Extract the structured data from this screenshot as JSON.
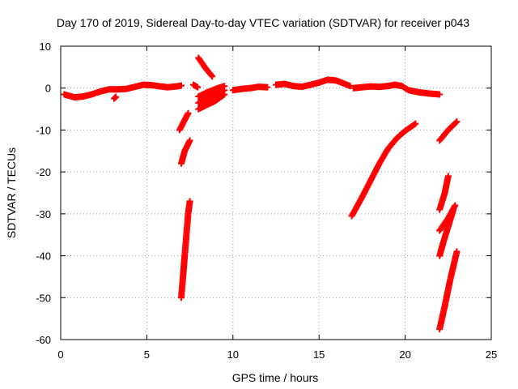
{
  "chart_data": {
    "type": "scatter",
    "title": "Day 170 of 2019, Sidereal Day-to-day VTEC variation (SDTVAR) for receiver p043",
    "xlabel": "GPS time / hours",
    "ylabel": "SDTVAR / TECUs",
    "xlim": [
      0,
      25
    ],
    "ylim": [
      -60,
      10
    ],
    "xticks": [
      "0",
      "5",
      "10",
      "15",
      "20",
      "25"
    ],
    "yticks": [
      "10",
      "0",
      "-10",
      "-20",
      "-30",
      "-40",
      "-50",
      "-60"
    ],
    "grid": true,
    "marker": "plus",
    "color": "#ff0000",
    "series": [
      {
        "segments": [
          [
            [
              0.2,
              -1.5
            ],
            [
              0.8,
              -2.2
            ],
            [
              1.3,
              -2.0
            ],
            [
              1.8,
              -1.5
            ],
            [
              2.3,
              -0.8
            ],
            [
              2.8,
              -0.3
            ],
            [
              3.3,
              -0.3
            ],
            [
              3.8,
              -0.2
            ],
            [
              4.3,
              0.3
            ],
            [
              4.8,
              0.8
            ],
            [
              5.3,
              0.7
            ],
            [
              5.8,
              0.4
            ],
            [
              6.2,
              0.2
            ],
            [
              6.7,
              0.4
            ],
            [
              7.0,
              0.6
            ]
          ],
          [
            [
              3.1,
              -2.5
            ],
            [
              3.2,
              -2.1
            ]
          ],
          [
            [
              7.7,
              0.8
            ],
            [
              7.95,
              0.2
            ]
          ],
          [
            [
              8.0,
              7.2
            ],
            [
              8.4,
              4.8
            ],
            [
              8.8,
              2.8
            ]
          ],
          [
            [
              8.0,
              -5.0
            ],
            [
              8.5,
              -4.0
            ],
            [
              9.0,
              -3.0
            ],
            [
              9.5,
              -1.5
            ]
          ],
          [
            [
              8.0,
              -3.5
            ],
            [
              8.5,
              -2.5
            ],
            [
              9.0,
              -1.5
            ],
            [
              9.5,
              -0.5
            ]
          ],
          [
            [
              8.0,
              -2.0
            ],
            [
              8.5,
              -1.0
            ],
            [
              9.0,
              -0.2
            ],
            [
              9.5,
              0.5
            ]
          ],
          [
            [
              10.0,
              -0.5
            ],
            [
              10.5,
              -0.2
            ],
            [
              11.0,
              0.0
            ],
            [
              11.5,
              0.3
            ],
            [
              12.0,
              0.2
            ]
          ],
          [
            [
              12.5,
              0.8
            ],
            [
              13.0,
              1.0
            ],
            [
              13.5,
              0.5
            ],
            [
              14.0,
              0.3
            ],
            [
              14.5,
              0.8
            ],
            [
              15.0,
              1.3
            ],
            [
              15.5,
              2.0
            ],
            [
              16.0,
              1.8
            ],
            [
              16.5,
              1.0
            ],
            [
              16.8,
              0.5
            ]
          ],
          [
            [
              17.0,
              0.0
            ],
            [
              17.5,
              0.2
            ],
            [
              18.0,
              0.4
            ],
            [
              18.5,
              0.3
            ],
            [
              19.0,
              0.5
            ],
            [
              19.4,
              0.8
            ],
            [
              19.8,
              0.5
            ],
            [
              20.2,
              -0.5
            ],
            [
              20.8,
              -1.0
            ],
            [
              21.4,
              -1.3
            ],
            [
              22.0,
              -1.5
            ]
          ],
          [
            [
              6.9,
              -10.0
            ],
            [
              7.4,
              -6.0
            ]
          ],
          [
            [
              7.0,
              -18.0
            ],
            [
              7.2,
              -15.0
            ],
            [
              7.5,
              -12.5
            ]
          ],
          [
            [
              7.0,
              -50.0
            ],
            [
              7.2,
              -40.0
            ],
            [
              7.3,
              -35.0
            ],
            [
              7.4,
              -30.0
            ],
            [
              7.5,
              -27.0
            ]
          ],
          [
            [
              16.9,
              -30.5
            ],
            [
              17.5,
              -26.0
            ],
            [
              18.0,
              -22.0
            ],
            [
              18.5,
              -18.0
            ],
            [
              19.0,
              -14.5
            ],
            [
              19.5,
              -12.0
            ],
            [
              20.0,
              -10.2
            ],
            [
              20.6,
              -8.5
            ]
          ],
          [
            [
              22.0,
              -12.5
            ],
            [
              22.5,
              -10.0
            ],
            [
              23.0,
              -8.0
            ]
          ],
          [
            [
              22.0,
              -29.0
            ],
            [
              22.3,
              -25.0
            ],
            [
              22.5,
              -21.0
            ]
          ],
          [
            [
              22.0,
              -34.0
            ],
            [
              22.5,
              -31.0
            ],
            [
              22.9,
              -28.0
            ]
          ],
          [
            [
              22.0,
              -40.0
            ],
            [
              22.2,
              -37.0
            ],
            [
              22.5,
              -33.0
            ],
            [
              22.8,
              -29.0
            ]
          ],
          [
            [
              22.0,
              -57.5
            ],
            [
              22.3,
              -52.0
            ],
            [
              22.6,
              -46.0
            ],
            [
              23.0,
              -39.0
            ]
          ]
        ]
      }
    ]
  }
}
